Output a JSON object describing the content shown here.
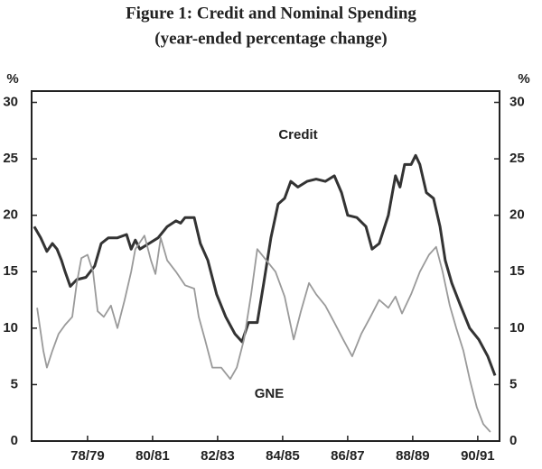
{
  "chart_data": {
    "type": "line",
    "title": "Figure 1: Credit and Nominal Spending",
    "subtitle": "(year-ended percentage change)",
    "y_unit_left": "%",
    "y_unit_right": "%",
    "xlim": [
      1977.28,
      1991.67
    ],
    "xticks": [
      {
        "value": 1979,
        "label": "78/79"
      },
      {
        "value": 1981,
        "label": "80/81"
      },
      {
        "value": 1983,
        "label": "82/83"
      },
      {
        "value": 1985,
        "label": "84/85"
      },
      {
        "value": 1987,
        "label": "86/87"
      },
      {
        "value": 1989,
        "label": "88/89"
      },
      {
        "value": 1991,
        "label": "90/91"
      }
    ],
    "ylim": [
      0,
      31
    ],
    "yticks": [
      0,
      5,
      10,
      15,
      20,
      25,
      30
    ],
    "grid": false,
    "series": [
      {
        "name": "Credit",
        "color": "#333333",
        "x": [
          1977.36,
          1977.56,
          1977.75,
          1977.92,
          1978.06,
          1978.2,
          1978.31,
          1978.47,
          1978.67,
          1978.95,
          1979.22,
          1979.42,
          1979.64,
          1979.92,
          1980.2,
          1980.34,
          1980.47,
          1980.61,
          1980.89,
          1981.17,
          1981.45,
          1981.72,
          1981.86,
          1982.0,
          1982.28,
          1982.47,
          1982.7,
          1982.97,
          1983.25,
          1983.53,
          1983.75,
          1983.95,
          1984.22,
          1984.42,
          1984.64,
          1984.86,
          1985.06,
          1985.25,
          1985.47,
          1985.75,
          1986.03,
          1986.31,
          1986.59,
          1986.81,
          1987.0,
          1987.28,
          1987.56,
          1987.75,
          1987.97,
          1988.25,
          1988.47,
          1988.61,
          1988.75,
          1988.95,
          1989.09,
          1989.22,
          1989.42,
          1989.64,
          1989.84,
          1990.0,
          1990.2,
          1990.47,
          1990.75,
          1991.03,
          1991.31,
          1991.53
        ],
        "values": [
          19,
          18,
          16.8,
          17.5,
          17,
          16,
          15,
          13.7,
          14.3,
          14.5,
          15.5,
          17.5,
          18,
          18,
          18.3,
          17,
          17.8,
          17,
          17.5,
          18,
          19,
          19.5,
          19.3,
          19.8,
          19.8,
          17.5,
          16,
          13,
          11,
          9.5,
          8.8,
          10.5,
          10.5,
          14,
          18,
          21,
          21.5,
          23,
          22.5,
          23,
          23.2,
          23,
          23.5,
          22,
          20,
          19.8,
          19,
          17,
          17.5,
          20,
          23.5,
          22.5,
          24.5,
          24.5,
          25.3,
          24.5,
          22,
          21.5,
          19,
          16,
          14,
          12,
          10,
          9,
          7.5,
          5.8
        ]
      },
      {
        "name": "GNE",
        "color": "#9a9a9a",
        "x": [
          1977.45,
          1977.64,
          1977.75,
          1977.92,
          1978.11,
          1978.31,
          1978.53,
          1978.67,
          1978.81,
          1979.0,
          1979.17,
          1979.31,
          1979.5,
          1979.72,
          1979.92,
          1980.14,
          1980.34,
          1980.47,
          1980.75,
          1980.95,
          1981.09,
          1981.25,
          1981.45,
          1981.72,
          1982.0,
          1982.28,
          1982.42,
          1982.61,
          1982.84,
          1983.11,
          1983.39,
          1983.59,
          1983.81,
          1984.03,
          1984.22,
          1984.5,
          1984.78,
          1985.06,
          1985.34,
          1985.56,
          1985.81,
          1986.03,
          1986.31,
          1986.59,
          1986.86,
          1987.14,
          1987.42,
          1987.7,
          1987.97,
          1988.25,
          1988.47,
          1988.67,
          1988.95,
          1989.22,
          1989.5,
          1989.72,
          1989.92,
          1990.14,
          1990.34,
          1990.56,
          1990.75,
          1990.97,
          1991.17,
          1991.39
        ],
        "values": [
          11.8,
          8,
          6.5,
          8,
          9.5,
          10.3,
          11,
          14,
          16.2,
          16.5,
          15,
          11.5,
          11,
          12,
          10,
          12.5,
          15,
          17,
          18.2,
          16,
          14.8,
          18,
          16,
          15,
          13.8,
          13.5,
          11,
          9,
          6.5,
          6.5,
          5.5,
          6.5,
          9,
          13,
          17,
          16,
          15,
          12.8,
          9,
          11.5,
          14,
          13,
          12,
          10.5,
          9,
          7.5,
          9.5,
          11,
          12.5,
          11.8,
          12.8,
          11.3,
          13,
          15,
          16.5,
          17.2,
          15,
          12,
          10,
          8,
          5.5,
          3,
          1.5,
          0.8
        ]
      }
    ]
  }
}
